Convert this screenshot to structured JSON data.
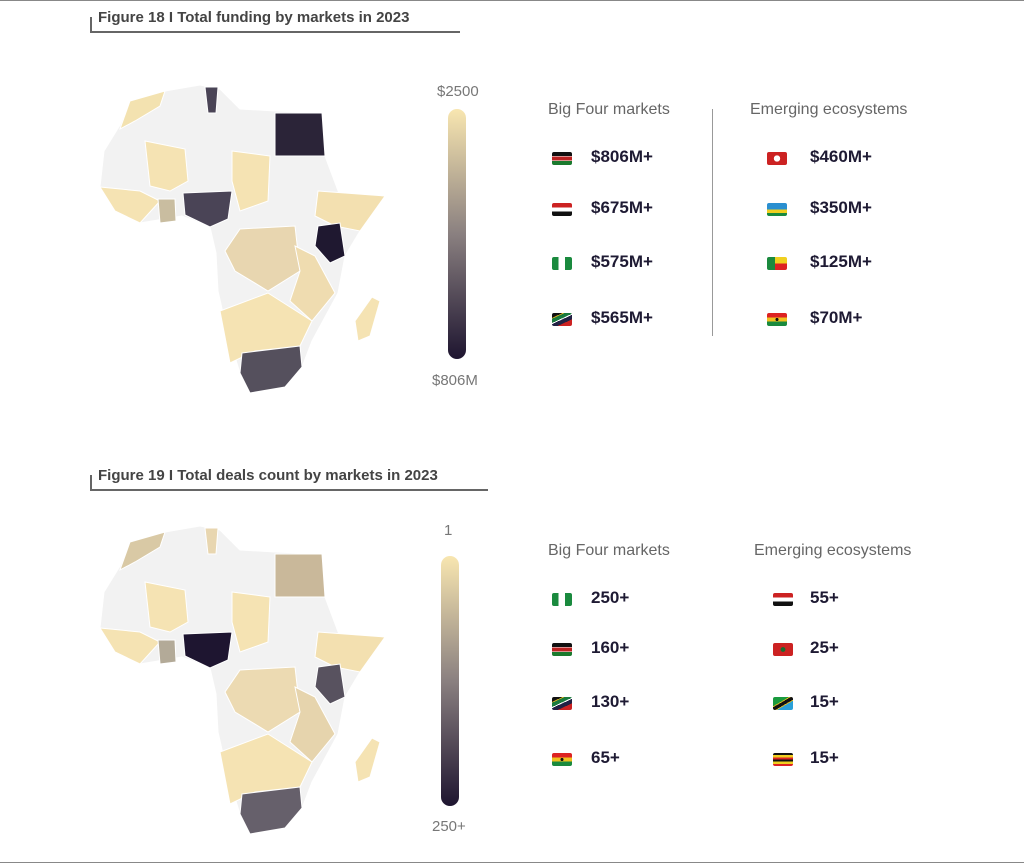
{
  "figures": [
    {
      "title": "Figure 18 I Total funding by markets in 2023",
      "legend": {
        "top": "$2500",
        "bottom": "$806M"
      },
      "big_four": {
        "header": "Big Four markets",
        "items": [
          {
            "flag": "kenya",
            "value": "$806M+"
          },
          {
            "flag": "egypt",
            "value": "$675M+"
          },
          {
            "flag": "nigeria",
            "value": "$575M+"
          },
          {
            "flag": "southafrica",
            "value": "$565M+"
          }
        ]
      },
      "emerging": {
        "header": "Emerging  ecosystems",
        "items": [
          {
            "flag": "tunisia",
            "value": "$460M+"
          },
          {
            "flag": "rwanda",
            "value": "$350M+"
          },
          {
            "flag": "benin",
            "value": "$125M+"
          },
          {
            "flag": "ghana",
            "value": "$70M+"
          }
        ]
      }
    },
    {
      "title": "Figure 19 I Total deals count by markets in 2023",
      "legend": {
        "top": "1",
        "bottom": "250+"
      },
      "big_four": {
        "header": "Big Four markets",
        "items": [
          {
            "flag": "nigeria",
            "value": "250+"
          },
          {
            "flag": "kenya",
            "value": "160+"
          },
          {
            "flag": "southafrica",
            "value": "130+"
          },
          {
            "flag": "ghana",
            "value": "65+"
          }
        ]
      },
      "emerging": {
        "header": "Emerging  ecosystems",
        "items": [
          {
            "flag": "egypt",
            "value": "55+"
          },
          {
            "flag": "morocco",
            "value": "25+"
          },
          {
            "flag": "tanzania",
            "value": "15+"
          },
          {
            "flag": "uganda",
            "value": "15+"
          }
        ]
      }
    }
  ],
  "colors": {
    "light": "#f8e6b0",
    "dark": "#1e1530",
    "empty": "#f2f2f2"
  },
  "chart_data": [
    {
      "type": "choropleth",
      "title": "Figure 18 I Total funding by markets in 2023",
      "scale": [
        "$806M",
        "$2500"
      ],
      "series": [
        {
          "name": "Big Four markets",
          "categories": [
            "Kenya",
            "Egypt",
            "Nigeria",
            "South Africa"
          ],
          "values": [
            "$806M+",
            "$675M+",
            "$575M+",
            "$565M+"
          ]
        },
        {
          "name": "Emerging ecosystems",
          "categories": [
            "Tunisia",
            "Rwanda",
            "Benin",
            "Ghana"
          ],
          "values": [
            "$460M+",
            "$350M+",
            "$125M+",
            "$70M+"
          ]
        }
      ]
    },
    {
      "type": "choropleth",
      "title": "Figure 19 I Total deals count by markets in 2023",
      "scale": [
        "1",
        "250+"
      ],
      "series": [
        {
          "name": "Big Four markets",
          "categories": [
            "Nigeria",
            "Kenya",
            "South Africa",
            "Ghana"
          ],
          "values": [
            "250+",
            "160+",
            "130+",
            "65+"
          ]
        },
        {
          "name": "Emerging ecosystems",
          "categories": [
            "Egypt",
            "Morocco",
            "Tanzania",
            "Uganda"
          ],
          "values": [
            "55+",
            "25+",
            "15+",
            "15+"
          ]
        }
      ]
    }
  ]
}
